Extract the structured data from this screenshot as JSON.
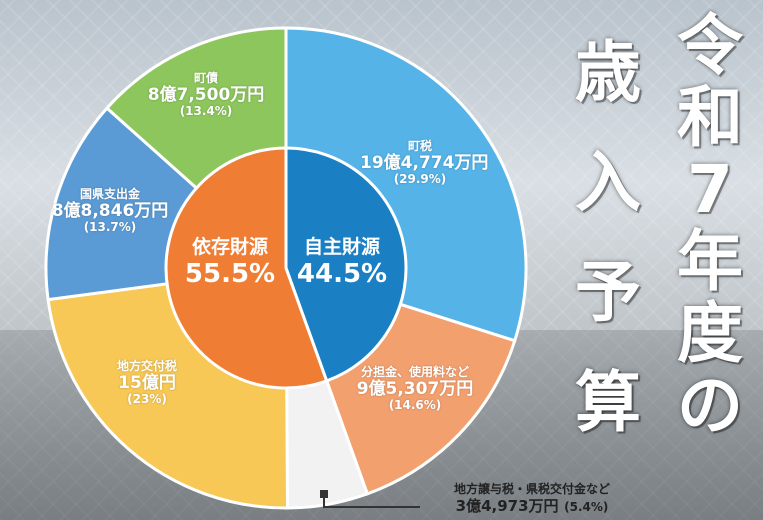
{
  "chart_data": {
    "type": "pie",
    "title": "令和7年度 歳入予算",
    "unit": "万円",
    "slices": [
      {
        "name": "町税",
        "amount": "19億4,774万円",
        "value": 29.9,
        "pct": "(29.9%)",
        "color": "#55b3e8",
        "group": "自主財源"
      },
      {
        "name": "分担金、使用料など",
        "amount": "9億5,307万円",
        "value": 14.6,
        "pct": "(14.6%)",
        "color": "#f3a06f",
        "group": "自主財源"
      },
      {
        "name": "地方譲与税・県税交付金など",
        "amount": "3億4,973万円",
        "value": 5.4,
        "pct": "(5.4%)",
        "color": "#f2f2f2",
        "group": "依存財源"
      },
      {
        "name": "地方交付税",
        "amount": "15億円",
        "value": 23,
        "pct": "(23%)",
        "color": "#f7c855",
        "group": "依存財源"
      },
      {
        "name": "国県支出金",
        "amount": "8億8,846万円",
        "value": 13.7,
        "pct": "(13.7%)",
        "color": "#5b9bd5",
        "group": "依存財源"
      },
      {
        "name": "町債",
        "amount": "8億7,500万円",
        "value": 13.4,
        "pct": "(13.4%)",
        "color": "#8dc65c",
        "group": "依存財源"
      }
    ],
    "inner": [
      {
        "name": "自主財源",
        "value": 44.5,
        "pct": "44.5%",
        "color": "#1b7fc4"
      },
      {
        "name": "依存財源",
        "value": 55.5,
        "pct": "55.5%",
        "color": "#ef7d34"
      }
    ]
  },
  "title": {
    "line1": "令和7年度の",
    "line2": "歳入予算"
  },
  "colors": {
    "background": "#c9d0d6",
    "outline": "#ffffff"
  }
}
